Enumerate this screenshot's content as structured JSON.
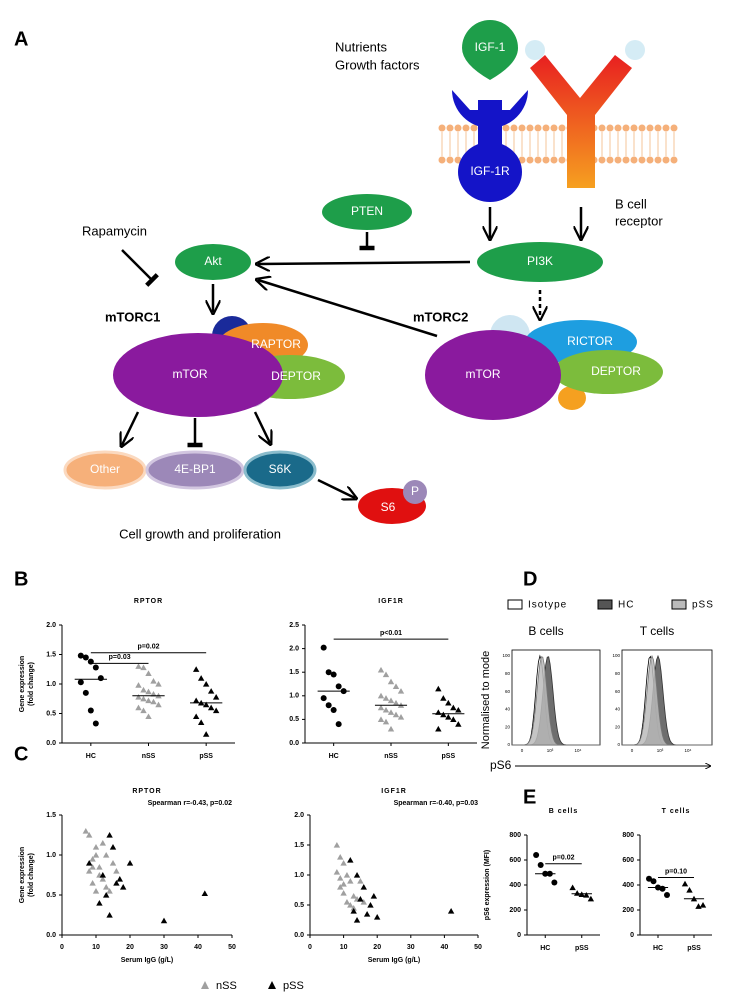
{
  "panels": {
    "a": "A",
    "b": "B",
    "c": "C",
    "d": "D",
    "e": "E"
  },
  "diagram": {
    "nutrients": "Nutrients",
    "growth_factors": "Growth factors",
    "bcr": [
      "B cell",
      "receptor"
    ],
    "rapamycin": "Rapamycin",
    "mtorc1": "mTORC1",
    "mtorc2": "mTORC2",
    "footer": "Cell growth and proliferation",
    "nodes": {
      "igf1": "IGF-1",
      "igf1r": "IGF-1R",
      "pten": "PTEN",
      "pi3k": "PI3K",
      "akt": "Akt",
      "mtor1": "mTOR",
      "raptor": "RAPTOR",
      "deptor1": "DEPTOR",
      "mtor2": "mTOR",
      "rictor": "RICTOR",
      "deptor2": "DEPTOR",
      "other": "Other",
      "ebp1": "4E-BP1",
      "s6k": "S6K",
      "s6": "S6",
      "p": "P"
    }
  },
  "panel_d": {
    "legend": [
      "Isotype",
      "HC",
      "pSS"
    ],
    "titles": [
      "B cells",
      "T cells"
    ],
    "ylabel": "Normalised to mode",
    "xlabel": "pS6",
    "yticks": [
      "0",
      "20",
      "40",
      "60",
      "80",
      "100"
    ],
    "xticks": [
      "0",
      "10³",
      "10⁴"
    ]
  },
  "chart_data": [
    {
      "type": "strip",
      "title": "RPTOR",
      "ylabel": [
        "Gene expression",
        "(fold change)"
      ],
      "ylim": [
        0,
        2
      ],
      "yticks": [
        {
          "value": 0,
          "label": "0.0"
        },
        {
          "value": 0.5,
          "label": "0.5"
        },
        {
          "value": 1,
          "label": "1.0"
        },
        {
          "value": 1.5,
          "label": "1.5"
        },
        {
          "value": 2,
          "label": "2.0"
        }
      ],
      "categories": [
        "HC",
        "nSS",
        "pSS"
      ],
      "series": [
        {
          "name": "HC",
          "color": "#000000",
          "marker": "circle",
          "values": [
            1.48,
            1.45,
            1.38,
            1.28,
            1.1,
            1.03,
            0.85,
            0.55,
            0.33
          ],
          "median": 1.08
        },
        {
          "name": "nSS",
          "color": "#a0a0a0",
          "marker": "triangle",
          "values": [
            1.3,
            1.28,
            1.18,
            1.05,
            1.0,
            0.98,
            0.9,
            0.87,
            0.83,
            0.8,
            0.78,
            0.75,
            0.72,
            0.7,
            0.65,
            0.6,
            0.55,
            0.45
          ],
          "median": 0.8
        },
        {
          "name": "pSS",
          "color": "#000000",
          "marker": "triangle",
          "values": [
            1.25,
            1.1,
            1.0,
            0.88,
            0.78,
            0.72,
            0.68,
            0.65,
            0.6,
            0.55,
            0.45,
            0.35,
            0.15
          ],
          "median": 0.68
        }
      ],
      "brackets": [
        {
          "label": "p=0.03",
          "from": 0,
          "to": 1,
          "y": 1.35
        },
        {
          "label": "p=0.02",
          "from": 0,
          "to": 2,
          "y": 1.53
        }
      ]
    },
    {
      "type": "strip",
      "title": "IGF1R",
      "ylim": [
        0,
        2.5
      ],
      "yticks": [
        {
          "value": 0,
          "label": "0.0"
        },
        {
          "value": 0.5,
          "label": "0.5"
        },
        {
          "value": 1,
          "label": "1.0"
        },
        {
          "value": 1.5,
          "label": "1.5"
        },
        {
          "value": 2,
          "label": "2.0"
        },
        {
          "value": 2.5,
          "label": "2.5"
        }
      ],
      "categories": [
        "HC",
        "nSS",
        "pSS"
      ],
      "series": [
        {
          "name": "HC",
          "color": "#000000",
          "marker": "circle",
          "values": [
            2.02,
            1.5,
            1.45,
            1.2,
            1.1,
            0.95,
            0.8,
            0.7,
            0.4
          ],
          "median": 1.1
        },
        {
          "name": "nSS",
          "color": "#a0a0a0",
          "marker": "triangle",
          "values": [
            1.55,
            1.45,
            1.3,
            1.2,
            1.1,
            1.0,
            0.95,
            0.9,
            0.85,
            0.8,
            0.75,
            0.7,
            0.65,
            0.6,
            0.55,
            0.5,
            0.45,
            0.3
          ],
          "median": 0.8
        },
        {
          "name": "pSS",
          "color": "#000000",
          "marker": "triangle",
          "values": [
            1.15,
            0.95,
            0.85,
            0.75,
            0.7,
            0.65,
            0.6,
            0.55,
            0.5,
            0.4,
            0.3
          ],
          "median": 0.62
        }
      ],
      "brackets": [
        {
          "label": "p<0.01",
          "from": 0,
          "to": 2,
          "y": 2.2
        }
      ]
    },
    {
      "type": "scatter",
      "title": "RPTOR",
      "annotation": "Spearman r=-0.43, p=0.02",
      "ylabel": [
        "Gene expression",
        "(fold change)"
      ],
      "xlabel": "Serum IgG (g/L)",
      "xlim": [
        0,
        50
      ],
      "xticks": [
        0,
        10,
        20,
        30,
        40,
        50
      ],
      "ylim": [
        0,
        1.5
      ],
      "yticks": [
        {
          "value": 0,
          "label": "0.0"
        },
        {
          "value": 0.5,
          "label": "0.5"
        },
        {
          "value": 1,
          "label": "1.0"
        },
        {
          "value": 1.5,
          "label": "1.5"
        }
      ],
      "series": [
        {
          "name": "nSS",
          "color": "#a0a0a0",
          "marker": "triangle",
          "x": [
            7,
            8,
            9,
            10,
            11,
            12,
            9,
            13,
            14,
            12,
            10,
            8,
            11,
            15,
            9,
            13,
            16,
            10
          ],
          "values": [
            1.3,
            1.25,
            0.95,
            1.0,
            0.85,
            0.7,
            0.65,
            0.6,
            0.55,
            1.15,
            1.1,
            0.8,
            0.75,
            0.9,
            0.85,
            1.0,
            0.8,
            0.55
          ]
        },
        {
          "name": "pSS",
          "color": "#000000",
          "marker": "triangle",
          "x": [
            8,
            12,
            14,
            15,
            16,
            18,
            20,
            14,
            13,
            11,
            17,
            30,
            42
          ],
          "values": [
            0.9,
            0.75,
            1.25,
            1.1,
            0.65,
            0.6,
            0.9,
            0.25,
            0.5,
            0.4,
            0.7,
            0.18,
            0.52
          ]
        }
      ]
    },
    {
      "type": "scatter",
      "title": "IGF1R",
      "annotation": "Spearman r=-0.40, p=0.03",
      "xlabel": "Serum IgG (g/L)",
      "xlim": [
        0,
        50
      ],
      "xticks": [
        0,
        10,
        20,
        30,
        40,
        50
      ],
      "ylim": [
        0,
        2
      ],
      "yticks": [
        {
          "value": 0,
          "label": "0.0"
        },
        {
          "value": 0.5,
          "label": "0.5"
        },
        {
          "value": 1,
          "label": "1.0"
        },
        {
          "value": 1.5,
          "label": "1.5"
        },
        {
          "value": 2,
          "label": "2.0"
        }
      ],
      "series": [
        {
          "name": "nSS",
          "color": "#a0a0a0",
          "marker": "triangle",
          "x": [
            8,
            9,
            10,
            11,
            12,
            8,
            9,
            10,
            13,
            14,
            11,
            12,
            15,
            9,
            16,
            13,
            10
          ],
          "values": [
            1.5,
            1.3,
            1.2,
            1.0,
            0.9,
            1.05,
            0.8,
            0.7,
            0.65,
            0.6,
            0.55,
            0.5,
            0.9,
            0.95,
            0.55,
            0.45,
            0.85
          ]
        },
        {
          "name": "pSS",
          "color": "#000000",
          "marker": "triangle",
          "x": [
            12,
            14,
            16,
            15,
            18,
            20,
            13,
            17,
            19,
            14,
            42
          ],
          "values": [
            1.25,
            1.0,
            0.8,
            0.6,
            0.5,
            0.3,
            0.4,
            0.35,
            0.65,
            0.25,
            0.4
          ]
        }
      ]
    },
    {
      "type": "strip",
      "title": "B cells",
      "ylabel": [
        "pS6 expression (MFI)"
      ],
      "ylim": [
        0,
        800
      ],
      "yticks": [
        0,
        200,
        400,
        600,
        800
      ],
      "categories": [
        "HC",
        "pSS"
      ],
      "series": [
        {
          "name": "HC",
          "color": "#000000",
          "marker": "circle",
          "values": [
            640,
            560,
            490,
            490,
            420
          ],
          "median": 490
        },
        {
          "name": "pSS",
          "color": "#000000",
          "marker": "triangle",
          "values": [
            380,
            335,
            325,
            320,
            290
          ],
          "median": 330
        }
      ],
      "brackets": [
        {
          "label": "p=0.02",
          "from": 0,
          "to": 1,
          "y": 570
        }
      ]
    },
    {
      "type": "strip",
      "title": "T cells",
      "ylim": [
        0,
        800
      ],
      "yticks": [
        0,
        200,
        400,
        600,
        800
      ],
      "categories": [
        "HC",
        "pSS"
      ],
      "series": [
        {
          "name": "HC",
          "color": "#000000",
          "marker": "circle",
          "values": [
            450,
            430,
            380,
            370,
            320
          ],
          "median": 380
        },
        {
          "name": "pSS",
          "color": "#000000",
          "marker": "triangle",
          "values": [
            410,
            360,
            290,
            230,
            240
          ],
          "median": 290
        }
      ],
      "brackets": [
        {
          "label": "p=0.10",
          "from": 0,
          "to": 1,
          "y": 460
        }
      ]
    }
  ]
}
